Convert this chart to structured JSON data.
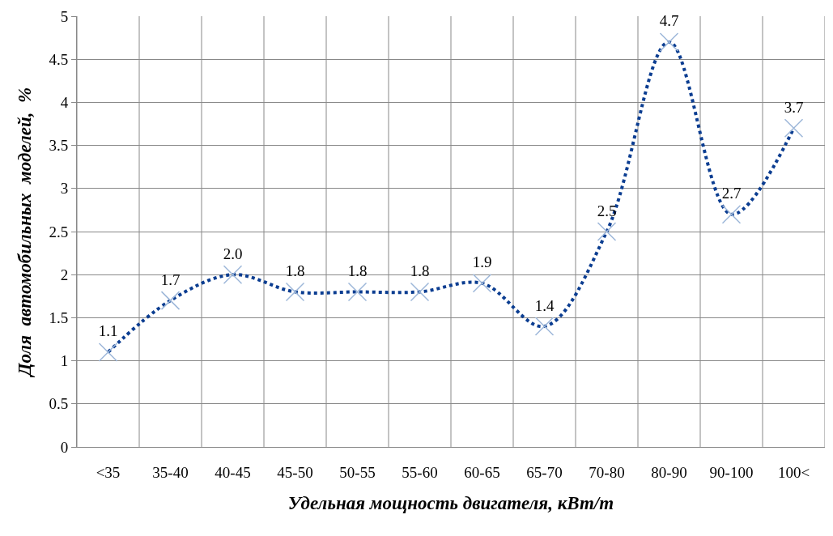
{
  "chart_data": {
    "type": "line",
    "xlabel": "Удельная мощность двигателя, кВт/т",
    "ylabel": "Доля  автомобильных  моделей,  %",
    "categories": [
      "<35",
      "35-40",
      "40-45",
      "45-50",
      "50-55",
      "55-60",
      "60-65",
      "65-70",
      "70-80",
      "80-90",
      "90-100",
      "100<"
    ],
    "series": [
      {
        "color": "#0b3d91",
        "values": [
          1.1,
          1.7,
          2.0,
          1.8,
          1.8,
          1.8,
          1.9,
          1.4,
          2.5,
          4.7,
          2.7,
          3.7
        ],
        "value_labels": [
          "1.1",
          "1.7",
          "2.0",
          "1.8",
          "1.8",
          "1.8",
          "1.9",
          "1.4",
          "2.5",
          "4.7",
          "2.7",
          "3.7"
        ]
      }
    ],
    "ylim": [
      0,
      5
    ],
    "yticks": [
      0,
      0.5,
      1,
      1.5,
      2,
      2.5,
      3,
      3.5,
      4,
      4.5,
      5
    ],
    "grid": true,
    "marker": "cross",
    "line_style": "dotted"
  }
}
